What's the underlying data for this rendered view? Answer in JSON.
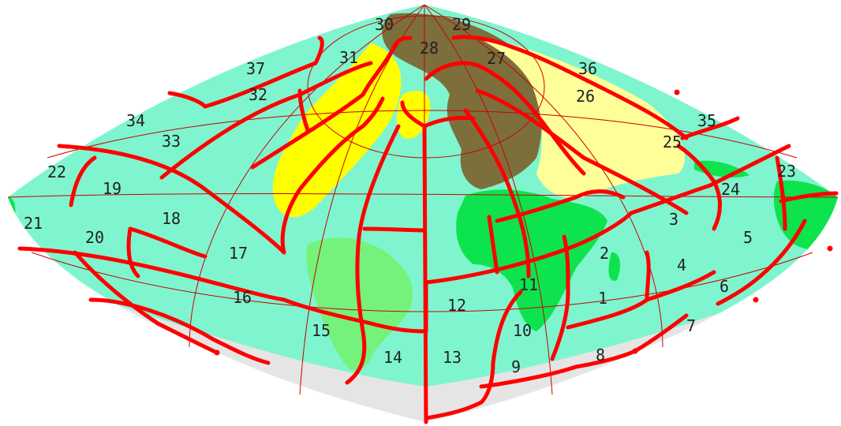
{
  "map": {
    "colors": {
      "ocean": "#7ff5cf",
      "land_green": "#0de34d",
      "land_light_green": "#74f27b",
      "land_yellow": "#ffff00",
      "land_light_yellow": "#ffff99",
      "land_olive": "#7c6f3c",
      "antarctica": "#e5e5e5",
      "thick_boundary": "#ff0000",
      "thin_grid": "#cc0000"
    },
    "zones": [
      {
        "id": "z1",
        "label": "1"
      },
      {
        "id": "z2",
        "label": "2"
      },
      {
        "id": "z3",
        "label": "3"
      },
      {
        "id": "z4",
        "label": "4"
      },
      {
        "id": "z5",
        "label": "5"
      },
      {
        "id": "z6",
        "label": "6"
      },
      {
        "id": "z7",
        "label": "7"
      },
      {
        "id": "z8",
        "label": "8"
      },
      {
        "id": "z9",
        "label": "9"
      },
      {
        "id": "z10",
        "label": "10"
      },
      {
        "id": "z11",
        "label": "11"
      },
      {
        "id": "z12",
        "label": "12"
      },
      {
        "id": "z13",
        "label": "13"
      },
      {
        "id": "z14",
        "label": "14"
      },
      {
        "id": "z15",
        "label": "15"
      },
      {
        "id": "z16",
        "label": "16"
      },
      {
        "id": "z17",
        "label": "17"
      },
      {
        "id": "z18",
        "label": "18"
      },
      {
        "id": "z19",
        "label": "19"
      },
      {
        "id": "z20",
        "label": "20"
      },
      {
        "id": "z21",
        "label": "21"
      },
      {
        "id": "z22",
        "label": "22"
      },
      {
        "id": "z23",
        "label": "23"
      },
      {
        "id": "z24",
        "label": "24"
      },
      {
        "id": "z25",
        "label": "25"
      },
      {
        "id": "z26",
        "label": "26"
      },
      {
        "id": "z27",
        "label": "27"
      },
      {
        "id": "z28",
        "label": "28"
      },
      {
        "id": "z29",
        "label": "29"
      },
      {
        "id": "z30",
        "label": "30"
      },
      {
        "id": "z31",
        "label": "31"
      },
      {
        "id": "z32",
        "label": "32"
      },
      {
        "id": "z33",
        "label": "33"
      },
      {
        "id": "z34",
        "label": "34"
      },
      {
        "id": "z35",
        "label": "35"
      },
      {
        "id": "z36",
        "label": "36"
      },
      {
        "id": "z37",
        "label": "37"
      }
    ]
  }
}
